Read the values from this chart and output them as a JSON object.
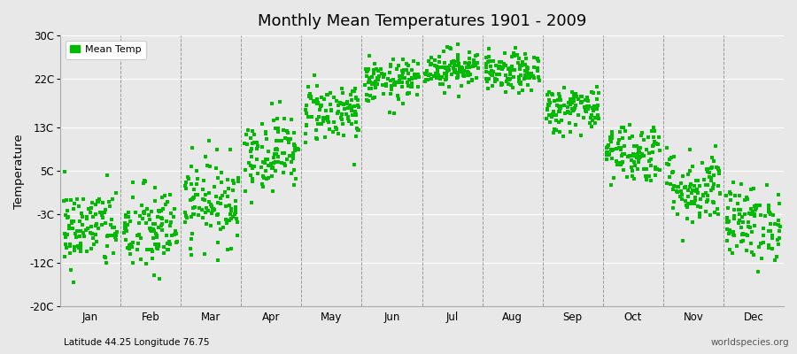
{
  "title": "Monthly Mean Temperatures 1901 - 2009",
  "ylabel": "Temperature",
  "xlabel_bottom_left": "Latitude 44.25 Longitude 76.75",
  "xlabel_bottom_right": "worldspecies.org",
  "legend_label": "Mean Temp",
  "dot_color": "#00BB00",
  "background_color": "#e8e8e8",
  "plot_bg_color": "#e8e8e8",
  "ylim": [
    -20,
    30
  ],
  "yticks": [
    -20,
    -12,
    -3,
    5,
    13,
    22,
    30
  ],
  "ytick_labels": [
    "-20C",
    "-12C",
    "-3C",
    "5C",
    "13C",
    "22C",
    "30C"
  ],
  "months": [
    "Jan",
    "Feb",
    "Mar",
    "Apr",
    "May",
    "Jun",
    "Jul",
    "Aug",
    "Sep",
    "Oct",
    "Nov",
    "Dec"
  ],
  "n_years": 109,
  "seed": 42,
  "monthly_mean_temps": [
    -5.5,
    -6.0,
    -0.5,
    8.5,
    16.0,
    21.5,
    24.0,
    23.0,
    16.5,
    8.5,
    2.0,
    -4.5
  ],
  "monthly_std_temps": [
    3.8,
    4.2,
    4.0,
    3.5,
    2.8,
    2.0,
    1.8,
    1.8,
    2.2,
    2.8,
    3.5,
    3.5
  ]
}
